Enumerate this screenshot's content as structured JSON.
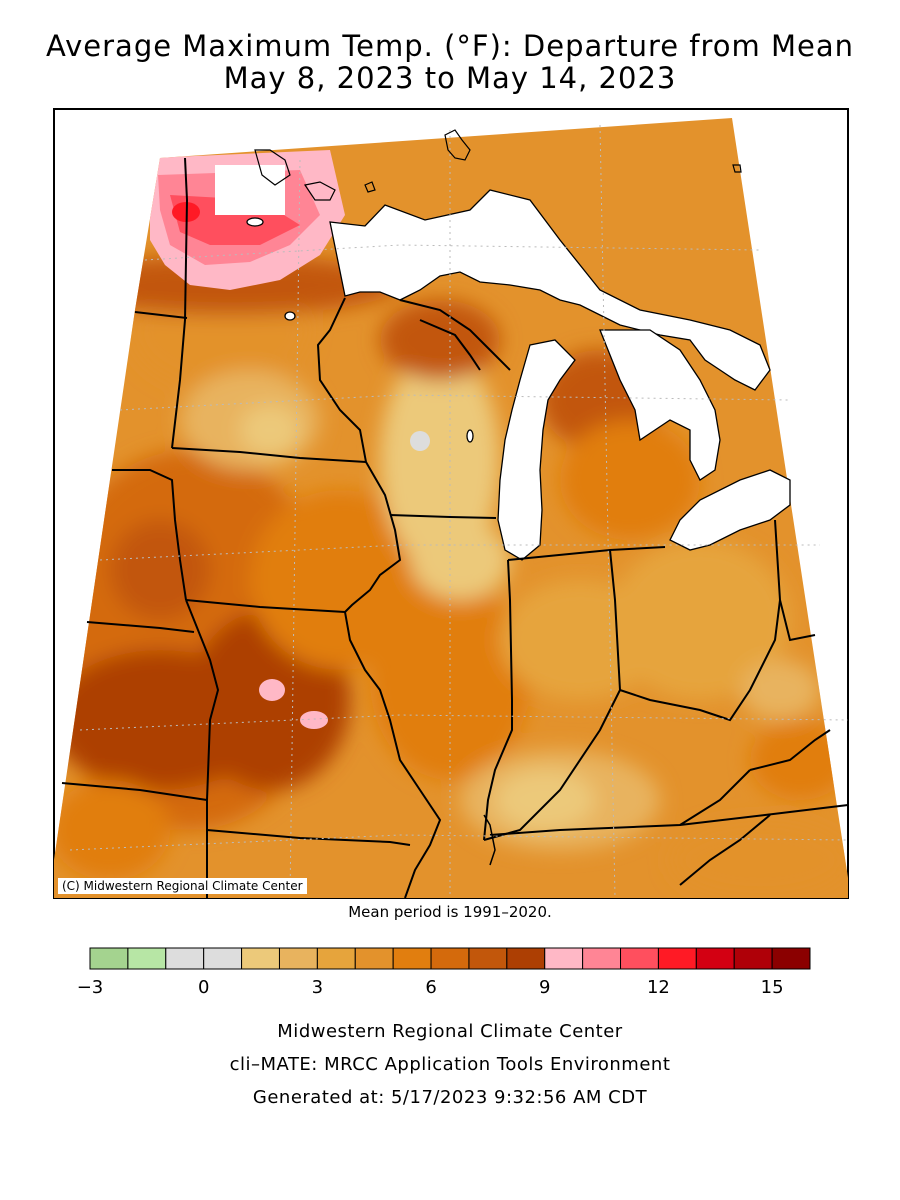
{
  "title_line1": "Average Maximum Temp. (°F): Departure from Mean",
  "title_line2": "May 8, 2023 to May 14, 2023",
  "copyright": "(C) Midwestern Regional Climate Center",
  "mean_note": "Mean period is 1991–2020.",
  "legend": {
    "colors": [
      "#a4d38f",
      "#b7e6a5",
      "#dddddd",
      "#dddddd",
      "#ecc97a",
      "#e8b35e",
      "#e6a43c",
      "#e3922c",
      "#e17e0f",
      "#d46a0c",
      "#c2570b",
      "#ad3f03",
      "#ffb8c6",
      "#ff8595",
      "#ff4f5e",
      "#ff1a25",
      "#d30012",
      "#af0008",
      "#8b0000"
    ],
    "min": -3,
    "max": 16,
    "tick_labels": [
      "−3",
      "0",
      "3",
      "6",
      "9",
      "12",
      "15"
    ],
    "tick_values": [
      -3,
      0,
      3,
      6,
      9,
      12,
      15
    ]
  },
  "footer_line1": "Midwestern Regional Climate Center",
  "footer_line2": "cli–MATE: MRCC Application Tools Environment",
  "footer_line3": "Generated at: 5/17/2023 9:32:56 AM CDT"
}
